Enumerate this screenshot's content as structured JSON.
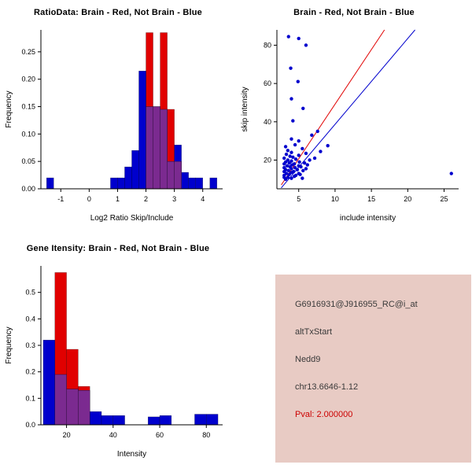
{
  "chart_data": [
    {
      "id": "ratio-hist",
      "type": "bar",
      "subtype": "overlaid-histogram",
      "title": "RatioData: Brain - Red, Not Brain - Blue",
      "xlabel": "Log2 Ratio Skip/Include",
      "ylabel": "Frequency",
      "xlim": [
        -1.7,
        4.7
      ],
      "ylim": [
        0,
        0.29
      ],
      "xticks": [
        -1,
        0,
        1,
        2,
        3,
        4
      ],
      "yticks": [
        0,
        0.05,
        0.1,
        0.15,
        0.2,
        0.25
      ],
      "ytick_labels": [
        "0.00",
        "0.05",
        "0.10",
        "0.15",
        "0.20",
        "0.25"
      ],
      "overlap_color": "#7b2a90",
      "series": [
        {
          "name": "Brain",
          "color": "#e10000",
          "bins": [
            [
              2.0,
              2.25,
              0.285
            ],
            [
              2.25,
              2.5,
              0.15
            ],
            [
              2.5,
              2.75,
              0.285
            ],
            [
              2.75,
              3.0,
              0.145
            ],
            [
              3.0,
              3.25,
              0.05
            ]
          ]
        },
        {
          "name": "Not Brain",
          "color": "#0000cd",
          "bins": [
            [
              -1.5,
              -1.25,
              0.02
            ],
            [
              0.75,
              1.0,
              0.02
            ],
            [
              1.0,
              1.25,
              0.02
            ],
            [
              1.25,
              1.5,
              0.04
            ],
            [
              1.5,
              1.75,
              0.07
            ],
            [
              1.75,
              2.0,
              0.215
            ],
            [
              2.0,
              2.25,
              0.15
            ],
            [
              2.25,
              2.5,
              0.15
            ],
            [
              2.5,
              2.75,
              0.145
            ],
            [
              2.75,
              3.0,
              0.05
            ],
            [
              3.0,
              3.25,
              0.08
            ],
            [
              3.25,
              3.5,
              0.03
            ],
            [
              3.5,
              3.75,
              0.02
            ],
            [
              3.75,
              4.0,
              0.02
            ],
            [
              4.25,
              4.5,
              0.02
            ]
          ]
        }
      ]
    },
    {
      "id": "scatter",
      "type": "scatter",
      "title": "Brain - Red, Not Brain - Blue",
      "xlabel": "include intensity",
      "ylabel": "skip intensity",
      "xlim": [
        2,
        27
      ],
      "ylim": [
        5,
        88
      ],
      "xticks": [
        5,
        10,
        15,
        20,
        25
      ],
      "yticks": [
        20,
        40,
        60,
        80
      ],
      "point_color": "#0000cd",
      "points": [
        [
          3.2,
          10
        ],
        [
          4,
          10.5
        ],
        [
          5.5,
          10.5
        ],
        [
          3,
          11
        ],
        [
          3.5,
          11
        ],
        [
          4.4,
          11.5
        ],
        [
          3,
          12
        ],
        [
          3.7,
          12.5
        ],
        [
          4.6,
          12
        ],
        [
          5.2,
          12.5
        ],
        [
          3.3,
          13
        ],
        [
          4,
          13.5
        ],
        [
          5,
          13
        ],
        [
          26,
          13
        ],
        [
          3,
          14
        ],
        [
          3.6,
          14.5
        ],
        [
          4.3,
          14
        ],
        [
          5.6,
          14.5
        ],
        [
          3.2,
          15
        ],
        [
          4,
          15.5
        ],
        [
          4.8,
          15
        ],
        [
          6,
          15.5
        ],
        [
          3,
          16
        ],
        [
          3.8,
          16.5
        ],
        [
          4.5,
          16
        ],
        [
          5.3,
          16.5
        ],
        [
          3.4,
          17
        ],
        [
          4.1,
          17.5
        ],
        [
          5,
          17
        ],
        [
          6.2,
          17.5
        ],
        [
          3,
          18
        ],
        [
          3.7,
          18.5
        ],
        [
          4.4,
          18
        ],
        [
          5.8,
          18.5
        ],
        [
          3.2,
          19
        ],
        [
          4,
          19.5
        ],
        [
          5.1,
          19
        ],
        [
          3.5,
          20
        ],
        [
          4.6,
          20.5
        ],
        [
          6.5,
          20
        ],
        [
          3,
          21
        ],
        [
          4.2,
          21.5
        ],
        [
          7.2,
          21
        ],
        [
          3.8,
          22
        ],
        [
          5,
          22.5
        ],
        [
          3.3,
          23
        ],
        [
          6,
          23.5
        ],
        [
          4,
          24
        ],
        [
          8,
          24.5
        ],
        [
          3.5,
          25
        ],
        [
          5.5,
          26
        ],
        [
          3.2,
          27
        ],
        [
          9,
          27.5
        ],
        [
          4.5,
          28
        ],
        [
          5,
          30
        ],
        [
          4,
          31
        ],
        [
          6.8,
          33
        ],
        [
          7.6,
          35
        ],
        [
          4.2,
          40.5
        ],
        [
          5.6,
          47
        ],
        [
          4,
          52
        ],
        [
          4.9,
          61
        ],
        [
          3.9,
          68
        ],
        [
          6,
          80
        ],
        [
          5,
          83.5
        ],
        [
          3.6,
          84.5
        ]
      ],
      "lines": [
        {
          "color": "#e10000",
          "from": [
            2.6,
            7
          ],
          "to": [
            16.8,
            88
          ]
        },
        {
          "color": "#0000cd",
          "from": [
            2.6,
            5.5
          ],
          "to": [
            21,
            88
          ]
        }
      ]
    },
    {
      "id": "gene-hist",
      "type": "bar",
      "subtype": "overlaid-histogram",
      "title": "Gene Itensity: Brain - Red, Not Brain - Blue",
      "xlabel": "Intensity",
      "ylabel": "Frequency",
      "xlim": [
        9,
        87
      ],
      "ylim": [
        0,
        0.6
      ],
      "xticks": [
        20,
        40,
        60,
        80
      ],
      "yticks": [
        0,
        0.1,
        0.2,
        0.3,
        0.4,
        0.5
      ],
      "ytick_labels": [
        "0.0",
        "0.1",
        "0.2",
        "0.3",
        "0.4",
        "0.5"
      ],
      "overlap_color": "#7b2a90",
      "series": [
        {
          "name": "Brain",
          "color": "#e10000",
          "bins": [
            [
              15,
              20,
              0.575
            ],
            [
              20,
              25,
              0.285
            ],
            [
              25,
              30,
              0.145
            ]
          ]
        },
        {
          "name": "Not Brain",
          "color": "#0000cd",
          "bins": [
            [
              10,
              15,
              0.32
            ],
            [
              15,
              20,
              0.19
            ],
            [
              20,
              25,
              0.135
            ],
            [
              25,
              30,
              0.13
            ],
            [
              30,
              35,
              0.05
            ],
            [
              35,
              40,
              0.035
            ],
            [
              40,
              45,
              0.035
            ],
            [
              55,
              60,
              0.03
            ],
            [
              60,
              65,
              0.035
            ],
            [
              75,
              80,
              0.04
            ],
            [
              80,
              85,
              0.04
            ]
          ]
        }
      ]
    }
  ],
  "info_panel": {
    "bg_color": "#e8cbc4",
    "lines": [
      {
        "text": "G6916931@J916955_RC@i_at",
        "color": "#3a3a3a"
      },
      {
        "text": "altTxStart",
        "color": "#3a3a3a"
      },
      {
        "text": "Nedd9",
        "color": "#3a3a3a"
      },
      {
        "text": "chr13.6646-1.12",
        "color": "#3a3a3a"
      },
      {
        "text": "Pval: 2.000000",
        "color": "#cc0000"
      }
    ]
  }
}
